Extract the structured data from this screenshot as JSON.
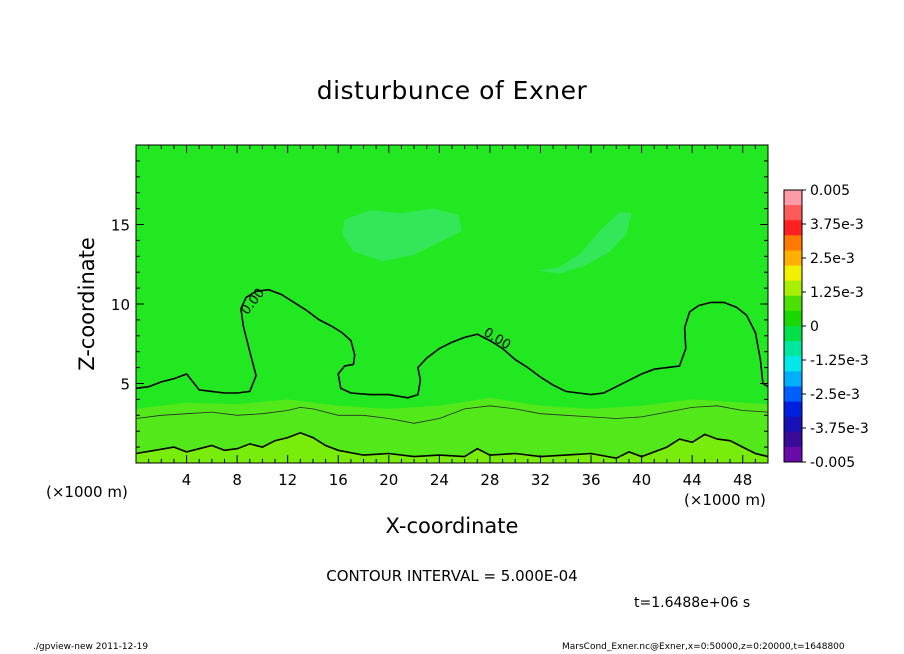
{
  "chart_data": {
    "type": "contour",
    "title": "disturbunce of Exner",
    "xlabel": "X-coordinate",
    "ylabel": "Z-coordinate",
    "x_unit_left": "(×1000 m)",
    "x_unit_right": "(×1000 m)",
    "xlim": [
      0,
      50
    ],
    "ylim": [
      0,
      20
    ],
    "x_ticks": [
      4,
      8,
      12,
      16,
      20,
      24,
      28,
      32,
      36,
      40,
      44,
      48
    ],
    "y_ticks": [
      5,
      10,
      15
    ],
    "contour_interval_text": "CONTOUR INTERVAL = 5.000E-04",
    "contour_label": "0.00",
    "time_text": "t=1.6488e+06 s",
    "colorbar": {
      "labels": [
        "0.005",
        "3.75e-3",
        "2.5e-3",
        "1.25e-3",
        "0",
        "-1.25e-3",
        "-2.5e-3",
        "-3.75e-3",
        "-0.005"
      ],
      "colors": [
        "#ff9aa8",
        "#ff5a5a",
        "#ff2020",
        "#ff7a00",
        "#ffb000",
        "#f0f000",
        "#a8f000",
        "#4ae000",
        "#18d800",
        "#00e048",
        "#00e8a0",
        "#00e8e8",
        "#00b0ff",
        "#0060ff",
        "#0020e0",
        "#1a10b8",
        "#3a0a98",
        "#6a0aa8"
      ]
    },
    "field_colors": {
      "background": "#22e822",
      "negative_patch": "#33e858",
      "low_level": "#52e81a",
      "surface": "#78ec0a"
    },
    "zero_contours": [
      {
        "name": "main",
        "points": [
          [
            0,
            4.7
          ],
          [
            1,
            4.8
          ],
          [
            2,
            5.1
          ],
          [
            3,
            5.3
          ],
          [
            4,
            5.6
          ],
          [
            5,
            4.6
          ],
          [
            6,
            4.5
          ],
          [
            7,
            4.4
          ],
          [
            8,
            4.4
          ],
          [
            9,
            4.5
          ],
          [
            9.5,
            5.5
          ],
          [
            9,
            7
          ],
          [
            8.5,
            8.6
          ],
          [
            8.3,
            9.7
          ],
          [
            8.7,
            10.4
          ],
          [
            9.5,
            10.8
          ],
          [
            10.5,
            10.9
          ],
          [
            11.5,
            10.6
          ],
          [
            12.5,
            10.1
          ],
          [
            13.5,
            9.6
          ],
          [
            14.5,
            9.0
          ],
          [
            15.5,
            8.6
          ],
          [
            16.3,
            8.2
          ],
          [
            17,
            7.7
          ],
          [
            17.3,
            6.8
          ],
          [
            17.2,
            6.2
          ],
          [
            16.5,
            6.1
          ],
          [
            16,
            5.6
          ],
          [
            16.2,
            4.7
          ],
          [
            17,
            4.4
          ],
          [
            18.5,
            4.3
          ],
          [
            20,
            4.3
          ],
          [
            21.5,
            4.1
          ],
          [
            22.3,
            4.3
          ],
          [
            22.5,
            5.2
          ],
          [
            22.3,
            6.0
          ],
          [
            23,
            6.6
          ],
          [
            24,
            7.2
          ],
          [
            25,
            7.6
          ],
          [
            26,
            7.9
          ],
          [
            27,
            8.1
          ],
          [
            28,
            7.7
          ],
          [
            29,
            7.2
          ],
          [
            30,
            6.5
          ],
          [
            31,
            6.0
          ],
          [
            32,
            5.4
          ],
          [
            33,
            4.9
          ],
          [
            34,
            4.5
          ],
          [
            35,
            4.4
          ],
          [
            36,
            4.3
          ],
          [
            37,
            4.4
          ],
          [
            38,
            4.8
          ],
          [
            39,
            5.2
          ],
          [
            40,
            5.6
          ],
          [
            41,
            5.9
          ],
          [
            42,
            6.0
          ],
          [
            43,
            6.1
          ],
          [
            43.5,
            7.2
          ],
          [
            43.4,
            8.5
          ],
          [
            43.8,
            9.5
          ],
          [
            44.5,
            9.9
          ],
          [
            45.5,
            10.1
          ],
          [
            46.5,
            10.1
          ],
          [
            47.5,
            9.8
          ],
          [
            48.3,
            9.3
          ],
          [
            49,
            8.2
          ],
          [
            49.4,
            6.5
          ],
          [
            49.6,
            5.0
          ],
          [
            50,
            4.8
          ]
        ]
      },
      {
        "name": "surface",
        "points": [
          [
            0,
            0.6
          ],
          [
            1.5,
            0.8
          ],
          [
            3,
            1.0
          ],
          [
            4,
            0.7
          ],
          [
            5,
            0.9
          ],
          [
            6,
            1.1
          ],
          [
            7,
            0.8
          ],
          [
            8,
            0.9
          ],
          [
            9,
            1.2
          ],
          [
            10,
            1.0
          ],
          [
            11,
            1.4
          ],
          [
            12,
            1.6
          ],
          [
            13,
            1.9
          ],
          [
            14,
            1.6
          ],
          [
            15,
            1.1
          ],
          [
            16,
            0.8
          ],
          [
            18,
            0.5
          ],
          [
            20,
            0.6
          ],
          [
            22,
            0.4
          ],
          [
            24,
            0.5
          ],
          [
            26,
            0.4
          ],
          [
            27,
            0.9
          ],
          [
            28,
            0.5
          ],
          [
            30,
            0.6
          ],
          [
            32,
            0.4
          ],
          [
            34,
            0.5
          ],
          [
            36,
            0.6
          ],
          [
            38,
            0.3
          ],
          [
            39,
            0.7
          ],
          [
            40,
            0.4
          ],
          [
            42,
            1.0
          ],
          [
            43,
            1.5
          ],
          [
            44,
            1.3
          ],
          [
            45,
            1.8
          ],
          [
            46,
            1.5
          ],
          [
            47,
            1.4
          ],
          [
            48,
            1.0
          ],
          [
            49,
            0.6
          ],
          [
            50,
            0.4
          ]
        ]
      }
    ],
    "minor_contours": [
      [
        [
          0,
          2.8
        ],
        [
          2,
          3.0
        ],
        [
          4,
          3.1
        ],
        [
          6,
          3.2
        ],
        [
          8,
          3.0
        ],
        [
          10,
          3.1
        ],
        [
          12,
          3.3
        ],
        [
          13,
          3.5
        ],
        [
          14,
          3.4
        ],
        [
          16,
          3.0
        ],
        [
          18,
          3.0
        ],
        [
          20,
          2.8
        ],
        [
          22,
          2.5
        ],
        [
          24,
          2.8
        ],
        [
          26,
          3.4
        ],
        [
          28,
          3.6
        ],
        [
          30,
          3.4
        ],
        [
          32,
          3.1
        ],
        [
          34,
          3.0
        ],
        [
          36,
          2.9
        ],
        [
          38,
          2.8
        ],
        [
          40,
          2.9
        ],
        [
          42,
          3.2
        ],
        [
          44,
          3.5
        ],
        [
          46,
          3.6
        ],
        [
          48,
          3.3
        ],
        [
          50,
          3.2
        ]
      ]
    ],
    "negative_patches": [
      [
        [
          16.5,
          15.3
        ],
        [
          18.5,
          15.9
        ],
        [
          21,
          15.7
        ],
        [
          23.5,
          16
        ],
        [
          25.5,
          15.6
        ],
        [
          25.8,
          14.6
        ],
        [
          24,
          13.9
        ],
        [
          22,
          13.1
        ],
        [
          19.5,
          12.7
        ],
        [
          17.2,
          13.3
        ],
        [
          16.3,
          14.4
        ]
      ],
      [
        [
          31.8,
          12.1
        ],
        [
          33.5,
          12.3
        ],
        [
          35.2,
          13.2
        ],
        [
          36.7,
          14.6
        ],
        [
          38.3,
          15.8
        ],
        [
          39.2,
          15.7
        ],
        [
          38.8,
          14.4
        ],
        [
          37.5,
          13.3
        ],
        [
          35.5,
          12.4
        ],
        [
          33.5,
          11.9
        ]
      ]
    ],
    "low_level_band": [
      [
        0,
        3.4
      ],
      [
        4,
        3.8
      ],
      [
        8,
        3.7
      ],
      [
        12,
        4.0
      ],
      [
        16,
        3.6
      ],
      [
        20,
        3.4
      ],
      [
        24,
        3.6
      ],
      [
        28,
        4.1
      ],
      [
        32,
        3.6
      ],
      [
        36,
        3.4
      ],
      [
        40,
        3.6
      ],
      [
        44,
        4.0
      ],
      [
        48,
        3.8
      ],
      [
        50,
        3.7
      ]
    ]
  },
  "footer": {
    "left": "./gpview-new  2011-12-19",
    "right": "MarsCond_Exner.nc@Exner,x=0:50000,z=0:20000,t=1648800"
  }
}
